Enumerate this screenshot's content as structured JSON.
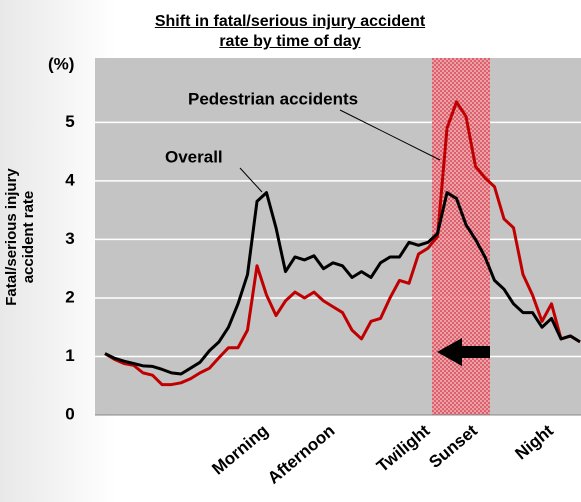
{
  "chart_data": {
    "type": "line",
    "title": "Shift in fatal/serious injury accident rate by time of day",
    "y_label": "Fatal/serious injury accident rate",
    "y_unit": "(%)",
    "annotations": [
      "Pedestrian accidents",
      "Overall"
    ],
    "categories": [
      null,
      null,
      null,
      null,
      null,
      null,
      null,
      null,
      null,
      null,
      null,
      null,
      null,
      null,
      null,
      null,
      null,
      "Morning",
      null,
      null,
      null,
      null,
      null,
      null,
      "Afternoon",
      null,
      null,
      null,
      null,
      null,
      null,
      null,
      null,
      null,
      "Twilight",
      null,
      null,
      null,
      null,
      "Sunset",
      null,
      null,
      null,
      null,
      null,
      null,
      null,
      "Night",
      null,
      null,
      null
    ],
    "series": [
      {
        "name": "Overall",
        "color": "#000000",
        "values": [
          1.05,
          0.97,
          0.92,
          0.88,
          0.84,
          0.83,
          0.78,
          0.72,
          0.7,
          0.8,
          0.9,
          1.1,
          1.25,
          1.5,
          1.9,
          2.4,
          3.65,
          3.8,
          3.2,
          2.45,
          2.7,
          2.65,
          2.72,
          2.5,
          2.6,
          2.55,
          2.35,
          2.45,
          2.35,
          2.6,
          2.7,
          2.7,
          2.95,
          2.9,
          2.95,
          3.1,
          3.8,
          3.7,
          3.25,
          3.0,
          2.7,
          2.3,
          2.15,
          1.9,
          1.75,
          1.75,
          1.5,
          1.65,
          1.3,
          1.35,
          1.25
        ]
      },
      {
        "name": "Pedestrian accidents",
        "color": "#c00000",
        "values": [
          1.05,
          0.95,
          0.88,
          0.85,
          0.72,
          0.68,
          0.52,
          0.52,
          0.55,
          0.62,
          0.72,
          0.8,
          0.98,
          1.15,
          1.15,
          1.45,
          2.55,
          2.05,
          1.7,
          1.95,
          2.1,
          2.0,
          2.1,
          1.95,
          1.85,
          1.75,
          1.45,
          1.3,
          1.6,
          1.65,
          2.0,
          2.3,
          2.25,
          2.75,
          2.85,
          3.05,
          4.9,
          5.35,
          5.1,
          4.25,
          4.05,
          3.9,
          3.35,
          3.2,
          2.4,
          2.05,
          1.6,
          1.9,
          1.3,
          1.35,
          1.25
        ]
      }
    ],
    "ylim": [
      0,
      6.1
    ],
    "yticks": [
      0,
      1,
      2,
      3,
      4,
      5
    ],
    "grid": true
  }
}
